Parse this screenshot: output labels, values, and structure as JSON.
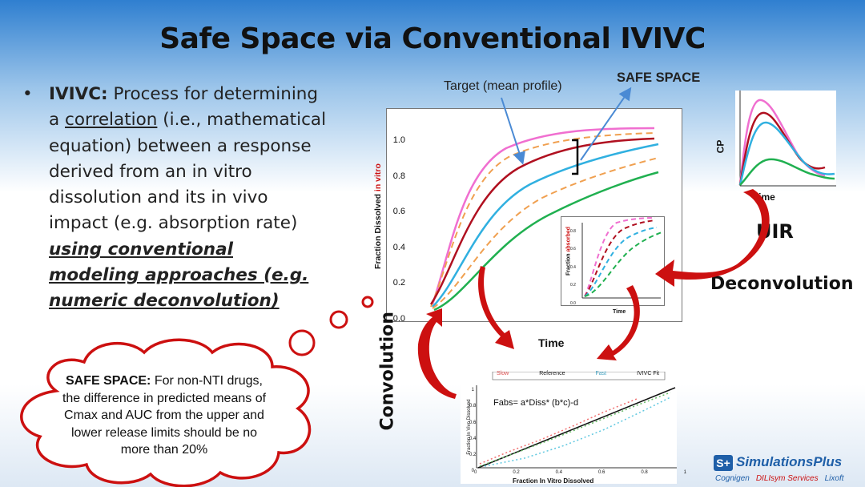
{
  "title": "Safe Space via Conventional IVIVC",
  "bullet": {
    "term": "IVIVC:",
    "t1": " Process for determining a ",
    "t2": "correlation",
    "t3": " (i.e., mathematical equation) between a response derived from an in vitro dissolution and its in vivo impact (e.g. absorption rate) ",
    "t4": "using conventional modeling approaches (e.g. numeric deconvolution)"
  },
  "cloud": {
    "heading": "SAFE SPACE:",
    "body": " For non-NTI drugs, the difference in predicted means of Cmax and AUC from the upper and lower release limits should be no more than 20%"
  },
  "labels": {
    "target": "Target (mean profile)",
    "safe_space": "SAFE SPACE",
    "uir": "UIR",
    "deconvolution": "Deconvolution",
    "convolution": "Convolution"
  },
  "main_chart": {
    "ylabel_prefix": "Fraction Dissolved ",
    "ylabel_highlight": "in vitro",
    "xlabel": "Time",
    "yticks": [
      "0.0",
      "0.2",
      "0.4",
      "0.6",
      "0.8",
      "1.0"
    ]
  },
  "absorbed_chart": {
    "ylabel_prefix": "Fraction ",
    "ylabel_highlight": "absorbed",
    "xlabel": "Time",
    "yticks": [
      "0.0",
      "0.2",
      "0.4",
      "0.6",
      "0.8"
    ]
  },
  "cp_chart": {
    "ylabel": "CP",
    "xlabel": "Time"
  },
  "ivivc_chart": {
    "legend": [
      "Slow",
      "Reference",
      "Fast",
      "IVIVC Fit"
    ],
    "equation": "Fabs= a*Diss* (b*c)-d",
    "xlabel": "Fraction In Vitro Dissolved",
    "ylabel": "Fraction In Vivo Dissolved",
    "xticks": [
      "0",
      "0.2",
      "0.4",
      "0.6",
      "0.8",
      "1"
    ],
    "yticks": [
      "0",
      "0.2",
      "0.4",
      "0.6",
      "0.8",
      "1"
    ]
  },
  "logo": {
    "badge": "S+",
    "name": "SimulationsPlus",
    "subs": [
      "Cognigen",
      "DILIsym Services",
      "Lixoft"
    ]
  },
  "colors": {
    "pink": "#f06fd0",
    "darkred": "#b01020",
    "orange": "#f0a050",
    "sky": "#30b0e0",
    "green": "#20b050",
    "arrow_red": "#cc1010"
  }
}
